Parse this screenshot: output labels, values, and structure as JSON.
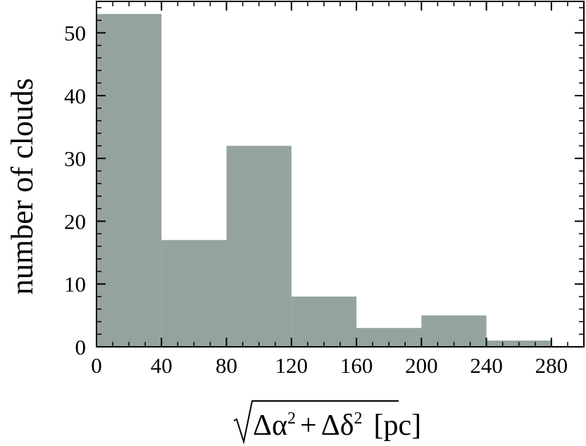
{
  "chart_data": {
    "type": "bar",
    "histogram": true,
    "bin_edges": [
      0,
      40,
      80,
      120,
      160,
      200,
      240,
      280
    ],
    "values": [
      53,
      17,
      32,
      8,
      3,
      5,
      1
    ],
    "xlim": [
      0,
      300
    ],
    "ylim": [
      0,
      55
    ],
    "xticks": [
      0,
      40,
      80,
      120,
      160,
      200,
      240,
      280
    ],
    "yticks": [
      0,
      10,
      20,
      30,
      40,
      50
    ],
    "xtick_labels": [
      "0",
      "40",
      "80",
      "120",
      "160",
      "200",
      "240",
      "280"
    ],
    "ytick_labels": [
      "0",
      "10",
      "20",
      "30",
      "40",
      "50"
    ],
    "ylabel": "number of clouds",
    "xlabel": {
      "alpha_term": "Δα",
      "plus": "+",
      "delta_term": "Δδ",
      "exponent": "2",
      "unit": "[pc]"
    },
    "bar_color": "#95a3a0",
    "grid": false
  }
}
